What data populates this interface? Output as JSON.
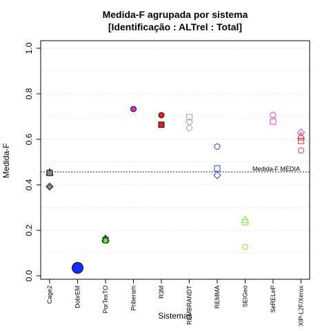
{
  "chart_data": {
    "type": "scatter",
    "title": "Medida-F agrupada por sistema",
    "subtitle": "[Identificação : ALTrel : Total]",
    "xlabel": "Sistemas",
    "ylabel": "Medida-F",
    "ylim": [
      0,
      1
    ],
    "yticks": [
      "0.0",
      "0.2",
      "0.4",
      "0.6",
      "0.8",
      "1.0"
    ],
    "grid": true,
    "categories": [
      "Cage2",
      "DobrEM",
      "PorTexTO",
      "Priberam",
      "R3M",
      "REMBRANDT",
      "REMMA",
      "SEIGeo",
      "SeRELeP",
      "XIP-L2F/Xerox"
    ],
    "reference_line": {
      "value": 0.457,
      "label": "Medida-F MÉDIA"
    },
    "points": [
      {
        "category": "Cage2",
        "y": 0.452,
        "shape": "circle",
        "color": "#888888",
        "filled": true
      },
      {
        "category": "Cage2",
        "y": 0.455,
        "shape": "triangle",
        "color": "#888888",
        "filled": true
      },
      {
        "category": "Cage2",
        "y": 0.452,
        "shape": "square",
        "color": "#888888",
        "filled": true
      },
      {
        "category": "Cage2",
        "y": 0.392,
        "shape": "diamond",
        "color": "#888888",
        "filled": true
      },
      {
        "category": "DobrEM",
        "y": 0.035,
        "shape": "circle",
        "color": "#1030FF",
        "filled": true,
        "big": true
      },
      {
        "category": "PorTexTO",
        "y": 0.165,
        "shape": "triangle",
        "color": "#55EE22",
        "filled": true
      },
      {
        "category": "PorTexTO",
        "y": 0.158,
        "shape": "square",
        "color": "#55EE22",
        "filled": true
      },
      {
        "category": "PorTexTO",
        "y": 0.155,
        "shape": "circle",
        "color": "#55EE22",
        "filled": true
      },
      {
        "category": "Priberam",
        "y": 0.733,
        "shape": "circle",
        "color": "#CC33CC",
        "filled": true
      },
      {
        "category": "R3M",
        "y": 0.706,
        "shape": "circle",
        "color": "#DD2222",
        "filled": true
      },
      {
        "category": "R3M",
        "y": 0.664,
        "shape": "square",
        "color": "#DD2222",
        "filled": true
      },
      {
        "category": "REMBRANDT",
        "y": 0.698,
        "shape": "square",
        "color": "#AAAAAA",
        "filled": false
      },
      {
        "category": "REMBRANDT",
        "y": 0.676,
        "shape": "diamond",
        "color": "#AAAAAA",
        "filled": false
      },
      {
        "category": "REMBRANDT",
        "y": 0.65,
        "shape": "circle",
        "color": "#AAAAAA",
        "filled": false
      },
      {
        "category": "REMMA",
        "y": 0.568,
        "shape": "circle",
        "color": "#3355DD",
        "filled": false
      },
      {
        "category": "REMMA",
        "y": 0.472,
        "shape": "square",
        "color": "#3355DD",
        "filled": false
      },
      {
        "category": "REMMA",
        "y": 0.442,
        "shape": "diamond",
        "color": "#3355DD",
        "filled": false
      },
      {
        "category": "SEIGeo",
        "y": 0.247,
        "shape": "triangle",
        "color": "#88EE44",
        "filled": false
      },
      {
        "category": "SEIGeo",
        "y": 0.236,
        "shape": "square",
        "color": "#88EE44",
        "filled": false
      },
      {
        "category": "SEIGeo",
        "y": 0.127,
        "shape": "circle",
        "color": "#88EE44",
        "filled": false
      },
      {
        "category": "SeRELeP",
        "y": 0.707,
        "shape": "circle",
        "color": "#DD44DD",
        "filled": false
      },
      {
        "category": "SeRELeP",
        "y": 0.678,
        "shape": "square",
        "color": "#DD44DD",
        "filled": false
      },
      {
        "category": "XIP-L2F/Xerox",
        "y": 0.63,
        "shape": "diamond",
        "color": "#EE44AA",
        "filled": false
      },
      {
        "category": "XIP-L2F/Xerox",
        "y": 0.615,
        "shape": "triangle",
        "color": "#EE44AA",
        "filled": false
      },
      {
        "category": "XIP-L2F/Xerox",
        "y": 0.607,
        "shape": "circle",
        "color": "#EE4444",
        "filled": false
      },
      {
        "category": "XIP-L2F/Xerox",
        "y": 0.593,
        "shape": "square",
        "color": "#EE4444",
        "filled": false
      },
      {
        "category": "XIP-L2F/Xerox",
        "y": 0.551,
        "shape": "circle",
        "color": "#EE4444",
        "filled": false
      }
    ]
  }
}
